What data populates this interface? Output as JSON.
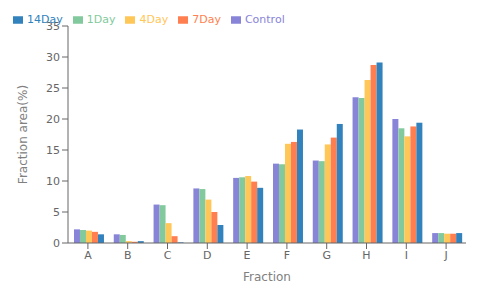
{
  "chart_data": {
    "type": "bar",
    "categories": [
      "A",
      "B",
      "C",
      "D",
      "E",
      "F",
      "G",
      "H",
      "I",
      "J"
    ],
    "series": [
      {
        "name": "Control",
        "color": "#8884d8",
        "values": [
          2.2,
          1.4,
          6.2,
          8.8,
          10.5,
          12.8,
          13.3,
          23.5,
          20.0,
          1.6
        ]
      },
      {
        "name": "1Day",
        "color": "#82ca9d",
        "values": [
          2.1,
          1.3,
          6.1,
          8.7,
          10.6,
          12.7,
          13.2,
          23.4,
          18.5,
          1.6
        ]
      },
      {
        "name": "4Day",
        "color": "#ffc658",
        "values": [
          2.0,
          0.3,
          3.2,
          7.0,
          10.8,
          16.0,
          15.9,
          26.3,
          17.2,
          1.5
        ]
      },
      {
        "name": "7Day",
        "color": "#ff7f50",
        "values": [
          1.8,
          0.2,
          1.1,
          5.0,
          9.9,
          16.3,
          17.0,
          28.7,
          18.8,
          1.5
        ]
      },
      {
        "name": "14Day",
        "color": "#3182bd",
        "values": [
          1.4,
          0.3,
          0.1,
          2.9,
          8.9,
          18.3,
          19.2,
          29.1,
          19.4,
          1.6
        ]
      }
    ],
    "xlabel": "Fraction",
    "ylabel": "Fraction area(%)",
    "ylim": [
      0,
      35
    ],
    "yticks": [
      0,
      5,
      10,
      15,
      20,
      25,
      30,
      35
    ],
    "legend": "upper left",
    "grid": false
  }
}
